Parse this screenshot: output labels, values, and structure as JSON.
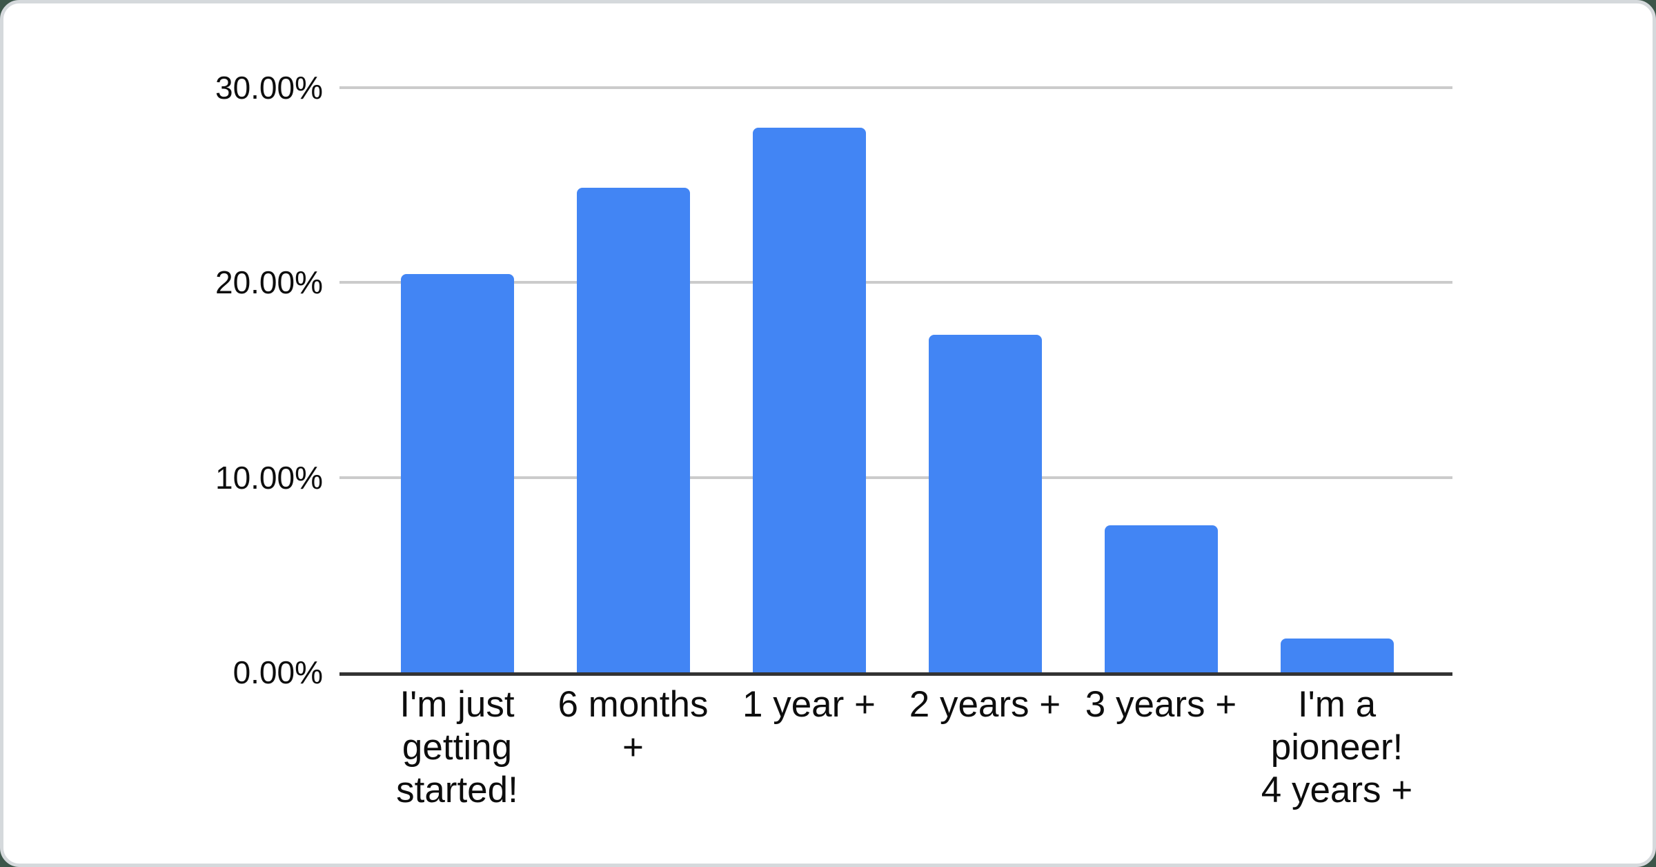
{
  "page": {
    "outer_background_color": "#3d564a",
    "card_background_color": "#ffffff",
    "card_ring_color": "#d5d9dc"
  },
  "chart_data": {
    "type": "bar",
    "title": "",
    "xlabel": "",
    "ylabel": "",
    "categories": [
      "I'm just getting started!",
      "6 months +",
      "1 year +",
      "2 years +",
      "3 years +",
      "I'm a pioneer! 4 years +"
    ],
    "category_lines": [
      [
        "I'm just",
        "getting",
        "started!"
      ],
      [
        "6 months",
        "+"
      ],
      [
        "1 year +"
      ],
      [
        "2 years +"
      ],
      [
        "3 years +"
      ],
      [
        "I'm a",
        "pioneer!",
        "4 years +"
      ]
    ],
    "values": [
      20.45,
      24.87,
      27.94,
      17.31,
      7.53,
      1.75
    ],
    "unit": "%",
    "ylim": [
      0,
      30
    ],
    "y_ticks": [
      {
        "label": "30.00%",
        "value": 30
      },
      {
        "label": "20.00%",
        "value": 20
      },
      {
        "label": "10.00%",
        "value": 10
      },
      {
        "label": "0.00%",
        "value": 0
      }
    ],
    "grid": true,
    "legend_position": "none",
    "bar_color": "#4285F4",
    "gridline_color": "#cbcbcb",
    "axis_line_color": "#333333",
    "label_color": "#0d0d0d"
  }
}
